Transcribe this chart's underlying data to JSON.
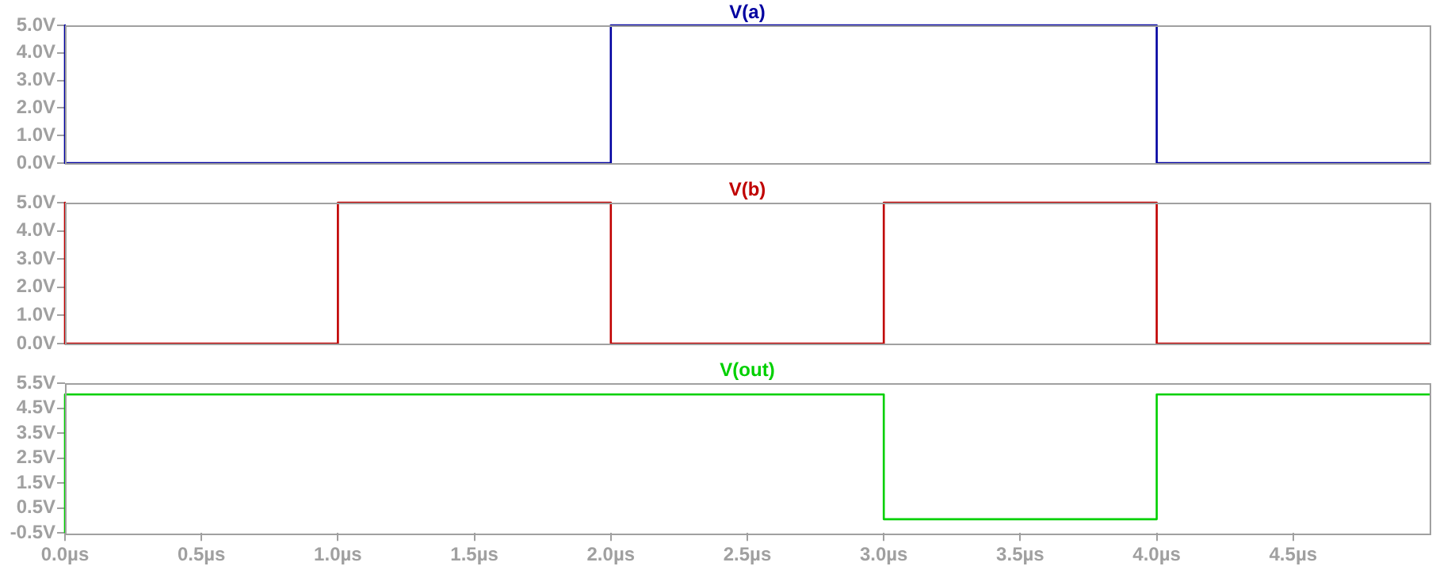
{
  "chart_data": [
    {
      "type": "line",
      "xlim": [
        0,
        5
      ],
      "ylim": [
        0,
        5
      ],
      "marker": "none",
      "legend": "top",
      "tick_labels": "y",
      "grid": false,
      "yticks": [
        {
          "value": 0,
          "label": "0.0V"
        },
        {
          "value": 1,
          "label": "1.0V"
        },
        {
          "value": 2,
          "label": "2.0V"
        },
        {
          "value": 3,
          "label": "3.0V"
        },
        {
          "value": 4,
          "label": "4.0V"
        },
        {
          "value": 5,
          "label": "5.0V"
        }
      ],
      "series": [
        {
          "name": "V(a)",
          "color": "#0000a0",
          "x": [
            0,
            0,
            2,
            2,
            4,
            4,
            5
          ],
          "values": [
            5,
            0,
            0,
            5,
            5,
            0,
            0
          ]
        }
      ]
    },
    {
      "type": "line",
      "xlim": [
        0,
        5
      ],
      "ylim": [
        0,
        5
      ],
      "marker": "none",
      "legend": "top",
      "tick_labels": "y",
      "grid": false,
      "yticks": [
        {
          "value": 0,
          "label": "0.0V"
        },
        {
          "value": 1,
          "label": "1.0V"
        },
        {
          "value": 2,
          "label": "2.0V"
        },
        {
          "value": 3,
          "label": "3.0V"
        },
        {
          "value": 4,
          "label": "4.0V"
        },
        {
          "value": 5,
          "label": "5.0V"
        }
      ],
      "series": [
        {
          "name": "V(b)",
          "color": "#c00000",
          "x": [
            0,
            0,
            1,
            1,
            2,
            2,
            3,
            3,
            4,
            4,
            5
          ],
          "values": [
            5,
            0,
            0,
            5,
            5,
            0,
            0,
            5,
            5,
            0,
            0
          ]
        }
      ]
    },
    {
      "type": "line",
      "xlim": [
        0,
        5
      ],
      "ylim": [
        -0.5,
        5.5
      ],
      "marker": "none",
      "legend": "top",
      "grid": false,
      "xticks": [
        {
          "value": 0,
          "label": "0.0µs"
        },
        {
          "value": 0.5,
          "label": "0.5µs"
        },
        {
          "value": 1,
          "label": "1.0µs"
        },
        {
          "value": 1.5,
          "label": "1.5µs"
        },
        {
          "value": 2,
          "label": "2.0µs"
        },
        {
          "value": 2.5,
          "label": "2.5µs"
        },
        {
          "value": 3,
          "label": "3.0µs"
        },
        {
          "value": 3.5,
          "label": "3.5µs"
        },
        {
          "value": 4,
          "label": "4.0µs"
        },
        {
          "value": 4.5,
          "label": "4.5µs"
        }
      ],
      "yticks": [
        {
          "value": -0.5,
          "label": "-0.5V"
        },
        {
          "value": 0.5,
          "label": "0.5V"
        },
        {
          "value": 1.5,
          "label": "1.5V"
        },
        {
          "value": 2.5,
          "label": "2.5V"
        },
        {
          "value": 3.5,
          "label": "3.5V"
        },
        {
          "value": 4.5,
          "label": "4.5V"
        },
        {
          "value": 5.5,
          "label": "5.5V"
        }
      ],
      "series": [
        {
          "name": "V(out)",
          "color": "#00d000",
          "x": [
            0,
            0,
            3,
            3,
            4,
            4,
            5
          ],
          "values": [
            -0.5,
            5.05,
            5.05,
            0.05,
            0.05,
            5.05,
            5.05
          ]
        }
      ]
    }
  ]
}
